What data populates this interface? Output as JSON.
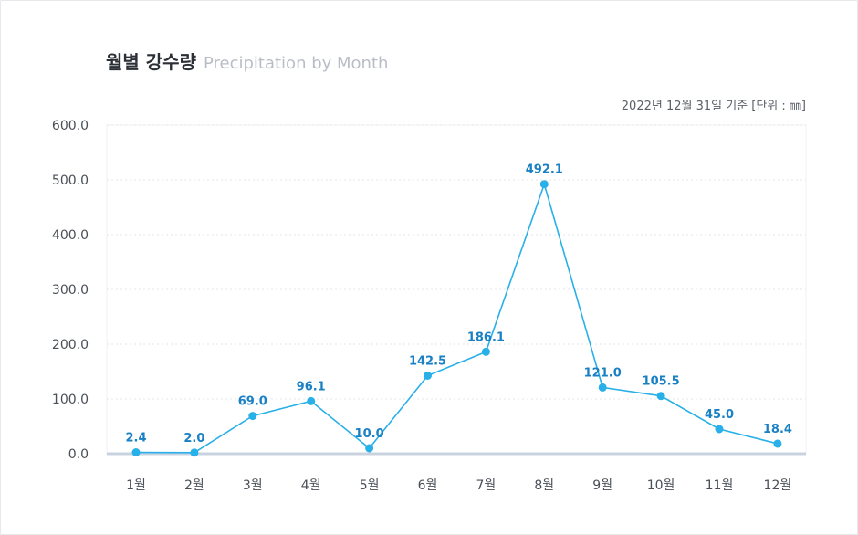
{
  "header": {
    "title_ko": "월별 강수량",
    "title_en": "Precipitation by Month",
    "note": "2022년 12월 31일 기준  [단위 : ㎜]"
  },
  "chart_data": {
    "type": "line",
    "categories": [
      "1월",
      "2월",
      "3월",
      "4월",
      "5월",
      "6월",
      "7월",
      "8월",
      "9월",
      "10월",
      "11월",
      "12월"
    ],
    "series": [
      {
        "values": [
          2.4,
          2.0,
          69.0,
          96.1,
          10.0,
          142.5,
          186.1,
          492.1,
          121.0,
          105.5,
          45.0,
          18.4
        ]
      }
    ],
    "data_labels": [
      "2.4",
      "2.0",
      "69.0",
      "96.1",
      "10.0",
      "142.5",
      "186.1",
      "492.1",
      "121.0",
      "105.5",
      "45.0",
      "18.4"
    ],
    "ylim": [
      0,
      600
    ],
    "yticks": [
      "0.0",
      "100.0",
      "200.0",
      "300.0",
      "400.0",
      "500.0",
      "600.0"
    ],
    "grid": true,
    "colors": {
      "line": "#29b0e8",
      "label": "#1a80c4",
      "axis": "#c9d3e0"
    }
  }
}
